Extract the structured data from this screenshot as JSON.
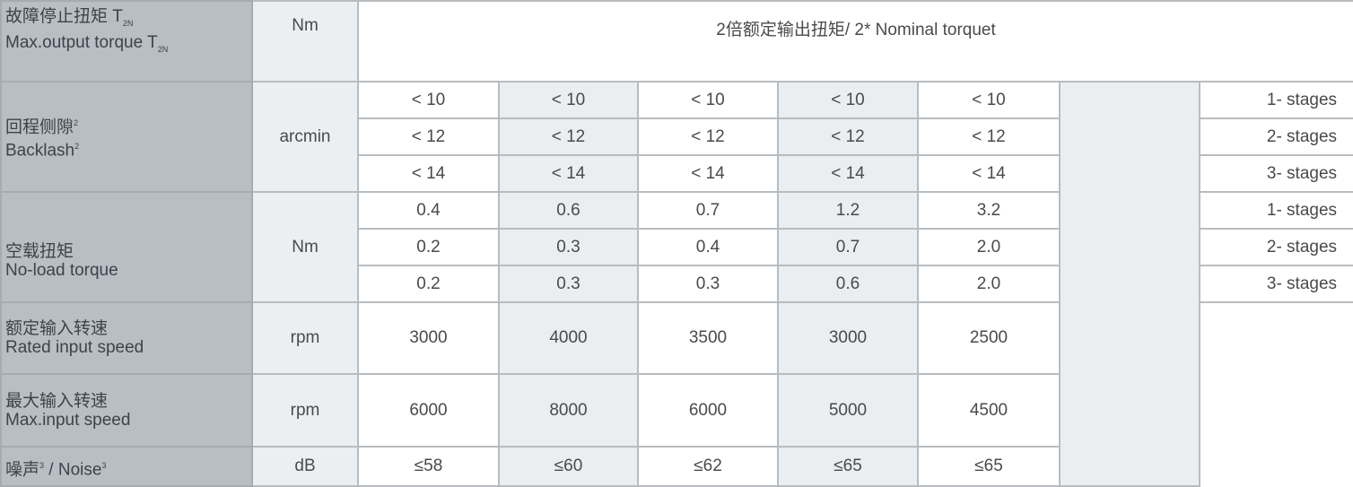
{
  "rows": {
    "max_output_torque": {
      "label_cn": "故障停止扭矩 T",
      "label_cn_sub": "2N",
      "label_en": "Max.output torque  T",
      "label_en_sub": "2N",
      "unit": "Nm",
      "value": "2倍额定输出扭矩/ 2* Nominal torquet"
    },
    "backlash": {
      "label_cn": "回程侧隙",
      "label_en": "Backlash",
      "footnote": "2",
      "unit": "arcmin",
      "stages": [
        {
          "stage": "1- stages",
          "values": [
            "< 10",
            "< 10",
            "< 10",
            "< 10",
            "< 10"
          ]
        },
        {
          "stage": "2- stages",
          "values": [
            "< 12",
            "< 12",
            "< 12",
            "< 12",
            "< 12"
          ]
        },
        {
          "stage": "3- stages",
          "values": [
            "< 14",
            "< 14",
            "< 14",
            "< 14",
            "< 14"
          ]
        }
      ]
    },
    "no_load_torque": {
      "label_cn": "空载扭矩",
      "label_en": "No-load torque",
      "unit": "Nm",
      "stages": [
        {
          "stage": "1- stages",
          "values": [
            "0.4",
            "0.6",
            "0.7",
            "1.2",
            "3.2"
          ]
        },
        {
          "stage": "2- stages",
          "values": [
            "0.2",
            "0.3",
            "0.4",
            "0.7",
            "2.0"
          ]
        },
        {
          "stage": "3- stages",
          "values": [
            "0.2",
            "0.3",
            "0.3",
            "0.6",
            "2.0"
          ]
        }
      ]
    },
    "rated_input_speed": {
      "label_cn": "额定输入转速",
      "label_en": "Rated input speed",
      "unit": "rpm",
      "values": [
        "3000",
        "4000",
        "3500",
        "3000",
        "2500"
      ]
    },
    "max_input_speed": {
      "label_cn": "最大输入转速",
      "label_en": "Max.input speed",
      "unit": "rpm",
      "values": [
        "6000",
        "8000",
        "6000",
        "5000",
        "4500"
      ]
    },
    "noise": {
      "label_cn": "噪声",
      "label_en": "Noise",
      "separator": " / ",
      "footnote": "3",
      "unit": "dB",
      "values": [
        "≤58",
        "≤60",
        "≤62",
        "≤65",
        "≤65"
      ]
    }
  }
}
